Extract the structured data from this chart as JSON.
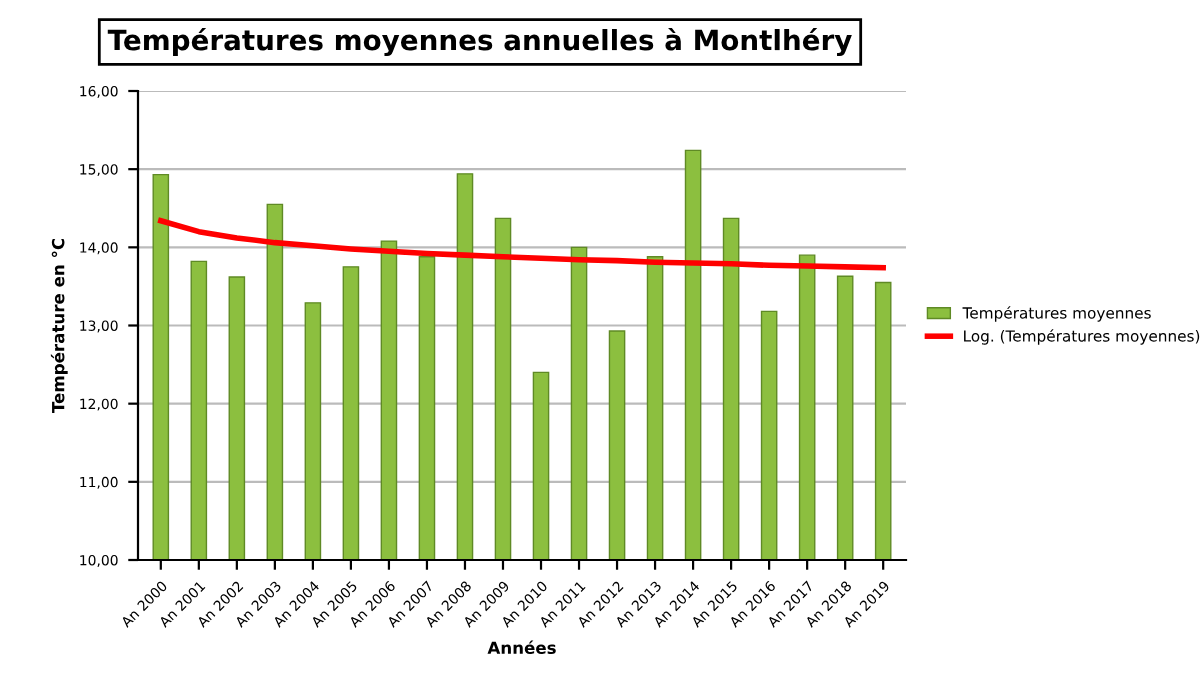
{
  "chart_data": {
    "type": "bar",
    "title": "Températures moyennes annuelles à Montlhéry",
    "xlabel": "Années",
    "ylabel": "Température en °C",
    "categories": [
      "An 2000",
      "An 2001",
      "An 2002",
      "An 2003",
      "An 2004",
      "An 2005",
      "An 2006",
      "An 2007",
      "An 2008",
      "An 2009",
      "An 2010",
      "An 2011",
      "An 2012",
      "An 2013",
      "An 2014",
      "An 2015",
      "An 2016",
      "An 2017",
      "An 2018",
      "An 2019"
    ],
    "series": [
      {
        "name": "Températures moyennes",
        "color": "#8cbf3f",
        "values": [
          14.93,
          13.82,
          13.62,
          14.55,
          13.29,
          13.75,
          14.08,
          13.88,
          14.94,
          14.37,
          12.4,
          14.0,
          12.93,
          13.88,
          15.24,
          14.37,
          13.18,
          13.9,
          13.63,
          13.55
        ]
      },
      {
        "name": "Log. (Températures moyennes)",
        "type": "line",
        "color": "#ff0000",
        "values": [
          14.34,
          14.2,
          14.12,
          14.06,
          14.02,
          13.98,
          13.95,
          13.92,
          13.9,
          13.88,
          13.86,
          13.84,
          13.83,
          13.81,
          13.8,
          13.79,
          13.77,
          13.76,
          13.75,
          13.74
        ]
      }
    ],
    "ylim": [
      10,
      16
    ],
    "yticks": [
      {
        "value": 10,
        "label": "10,00"
      },
      {
        "value": 11,
        "label": "11,00"
      },
      {
        "value": 12,
        "label": "12,00"
      },
      {
        "value": 13,
        "label": "13,00"
      },
      {
        "value": 14,
        "label": "14,00"
      },
      {
        "value": 15,
        "label": "15,00"
      },
      {
        "value": 16,
        "label": "16,00"
      }
    ],
    "grid": "y",
    "legend": "right"
  }
}
